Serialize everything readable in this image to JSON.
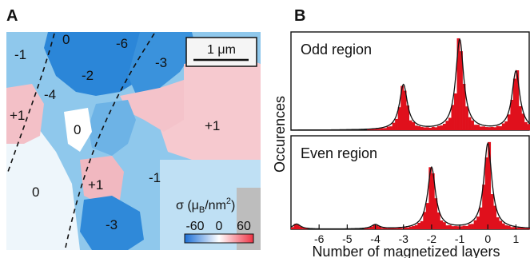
{
  "panel_a": {
    "letter": "A",
    "scale_bar": "1 μm",
    "domain_labels": [
      "0",
      "-6",
      "-1",
      "-3",
      "-2",
      "-4",
      "+1",
      "0",
      "+1",
      "-1",
      "0",
      "+1",
      "-3"
    ],
    "colorbar": {
      "title_sigma": "σ (μ",
      "title_sub": "B",
      "title_unit": "/nm",
      "title_sup": "2",
      "title_close": ")",
      "tick_labels": [
        "-60",
        "0",
        "60"
      ],
      "min": -60,
      "max": 60,
      "colors": [
        "#1c6fd6",
        "#ffffff",
        "#ee3344"
      ]
    }
  },
  "panel_b": {
    "letter": "B",
    "chart_data": {
      "type": "bar",
      "xlabel": "Number of magnetized layers",
      "ylabel": "Occurences",
      "xlim": [
        -7,
        1.5
      ],
      "x_ticks": [
        "-6",
        "-5",
        "-4",
        "-3",
        "-2",
        "-1",
        "0",
        "1"
      ],
      "bar_color": "#e0101c",
      "fit_color": "#111111",
      "panels": [
        {
          "title": "Odd region",
          "peaks": [
            {
              "center": -3,
              "amplitude": 0.5
            },
            {
              "center": -1,
              "amplitude": 1.0
            },
            {
              "center": 1,
              "amplitude": 0.65
            }
          ]
        },
        {
          "title": "Even region",
          "peaks": [
            {
              "center": -6.8,
              "amplitude": 0.06
            },
            {
              "center": -4,
              "amplitude": 0.05
            },
            {
              "center": -2,
              "amplitude": 0.72
            },
            {
              "center": 0,
              "amplitude": 1.0
            }
          ]
        }
      ]
    }
  }
}
